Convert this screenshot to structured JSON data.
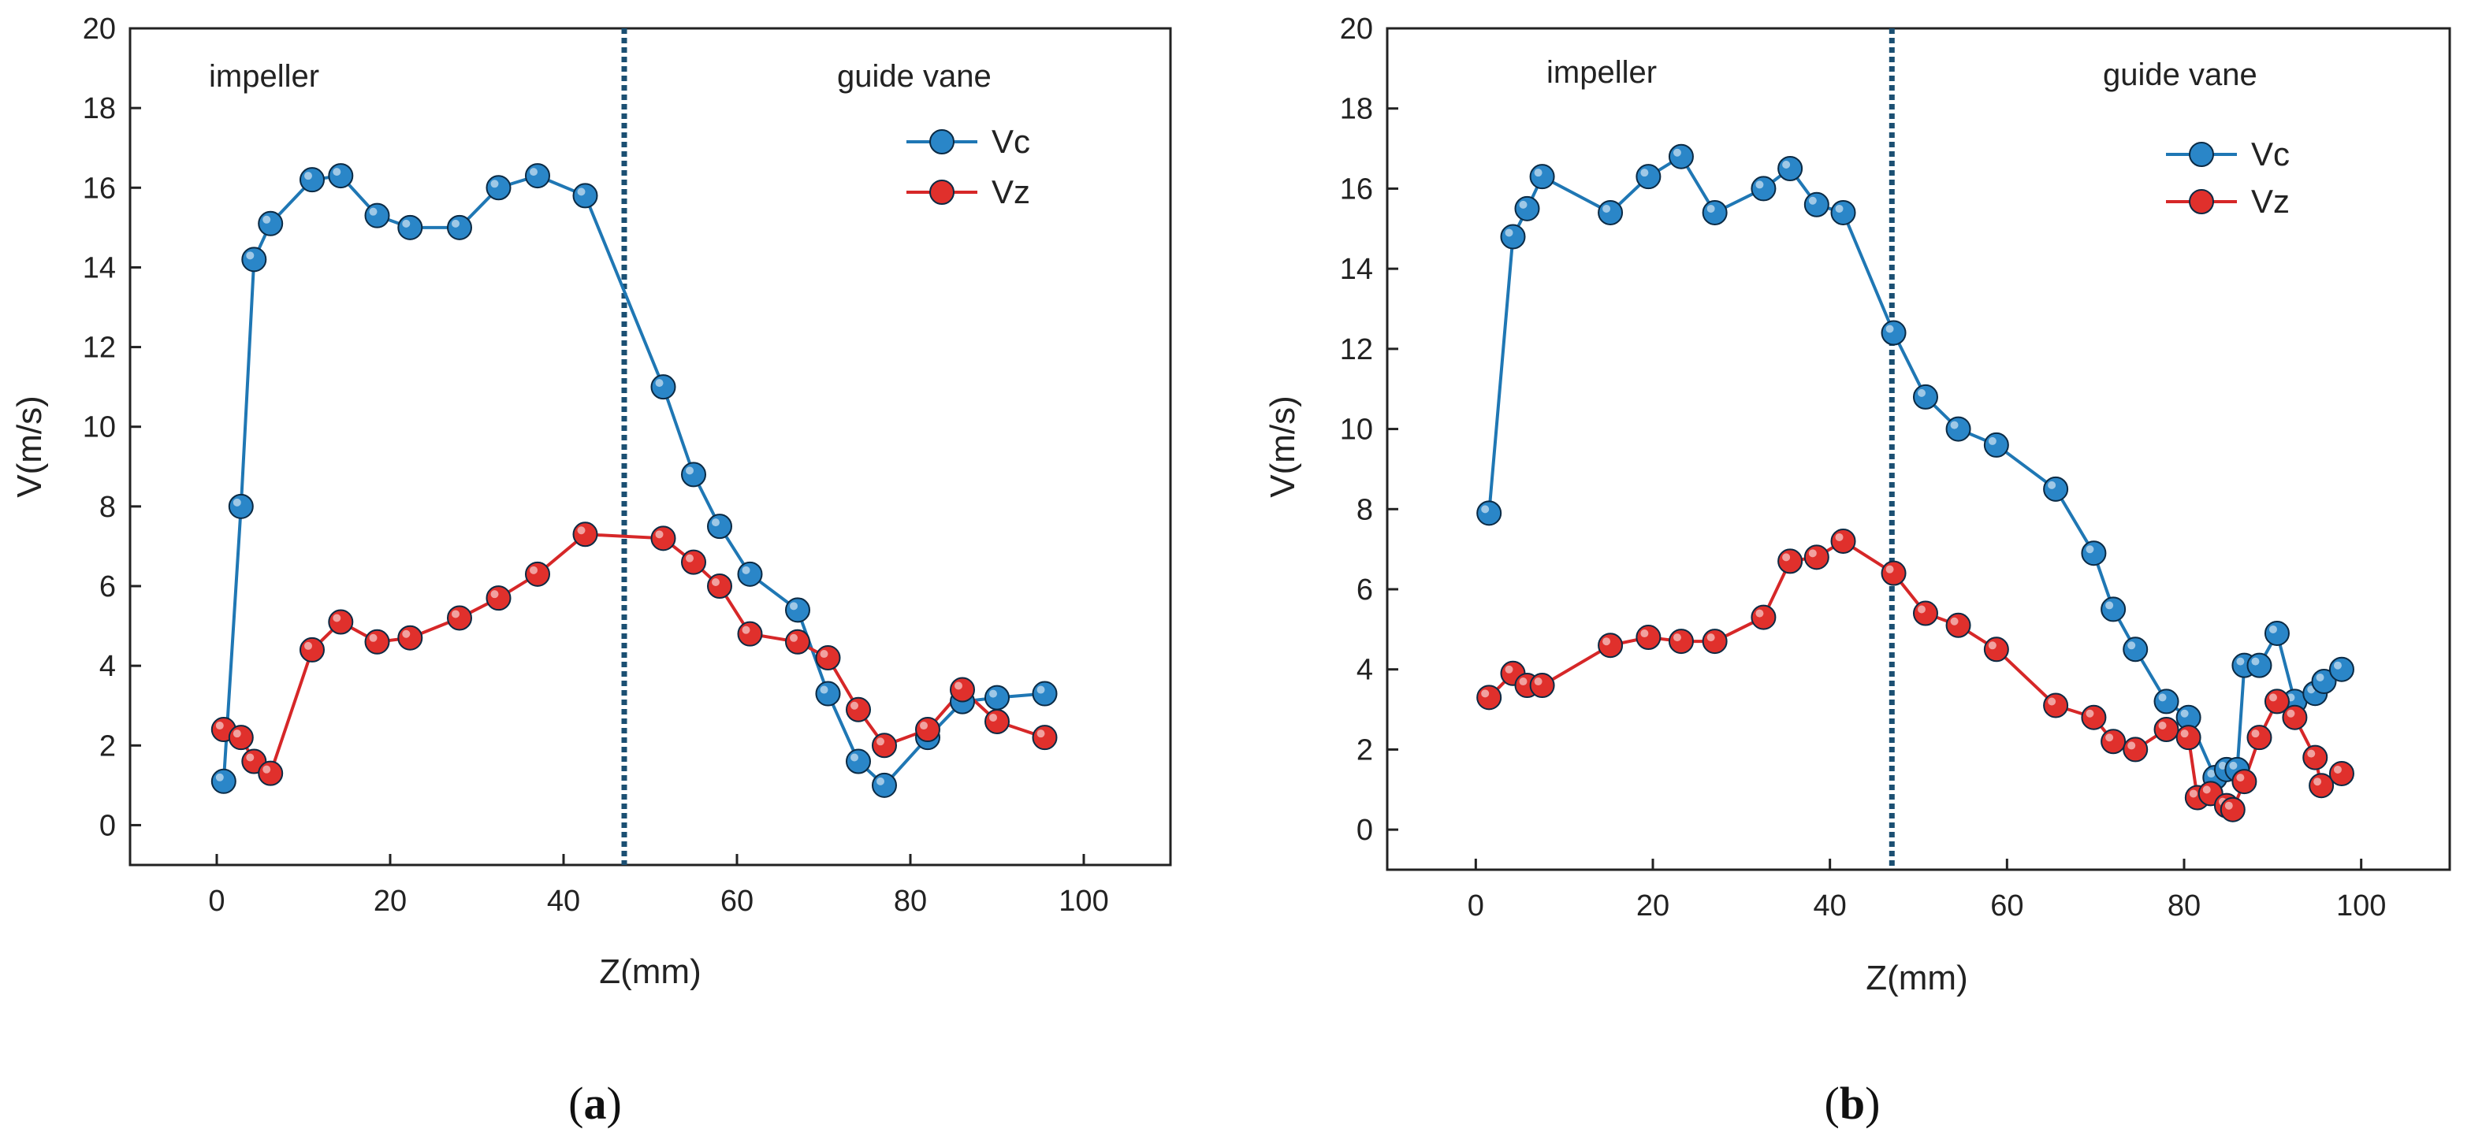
{
  "colors": {
    "vc": "#1f77b4",
    "vc_fill": "#2a86c8",
    "vz": "#d62728",
    "vz_fill": "#e0302c",
    "divider": "#1b4f72",
    "axis": "#222222"
  },
  "chart_data": [
    {
      "type": "line",
      "panel": "a",
      "panel_label": "a",
      "xlabel": "Z(mm)",
      "ylabel": "V(m/s)",
      "xlim": [
        -10,
        110
      ],
      "ylim": [
        -1,
        20
      ],
      "xticks": [
        "0",
        "20",
        "40",
        "60",
        "80",
        "100"
      ],
      "yticks": [
        "0",
        "2",
        "4",
        "6",
        "8",
        "10",
        "12",
        "14",
        "16",
        "18",
        "20"
      ],
      "divider_x": 47,
      "annotations": [
        "impeller",
        "guide vane"
      ],
      "series": [
        {
          "name": "Vc",
          "x": [
            0.8,
            2.8,
            4.3,
            6.2,
            11,
            14.3,
            18.5,
            22.3,
            28,
            32.5,
            37,
            42.5,
            51.5,
            55,
            58,
            61.5,
            67,
            70.5,
            74,
            77,
            82,
            86,
            90,
            95.5
          ],
          "y": [
            1.1,
            8.0,
            14.2,
            15.1,
            16.2,
            16.3,
            15.3,
            15.0,
            15.0,
            16.0,
            16.3,
            15.8,
            11.0,
            8.8,
            7.5,
            6.3,
            5.4,
            3.3,
            1.6,
            1.0,
            2.2,
            3.1,
            3.2,
            3.3
          ]
        },
        {
          "name": "Vz",
          "x": [
            0.8,
            2.8,
            4.3,
            6.2,
            11,
            14.3,
            18.5,
            22.3,
            28,
            32.5,
            37,
            42.5,
            51.5,
            55,
            58,
            61.5,
            67,
            70.5,
            74,
            77,
            82,
            86,
            90,
            95.5
          ],
          "y": [
            2.4,
            2.2,
            1.6,
            1.3,
            4.4,
            5.1,
            4.6,
            4.7,
            5.2,
            5.7,
            6.3,
            7.3,
            7.2,
            6.6,
            6.0,
            4.8,
            4.6,
            4.2,
            2.9,
            2.0,
            2.4,
            3.4,
            2.6,
            2.2
          ]
        }
      ]
    },
    {
      "type": "line",
      "panel": "b",
      "panel_label": "b",
      "xlabel": "Z(mm)",
      "ylabel": "V(m/s)",
      "xlim": [
        -10,
        110
      ],
      "ylim": [
        -1,
        20
      ],
      "xticks": [
        "0",
        "20",
        "40",
        "60",
        "80",
        "100"
      ],
      "yticks": [
        "0",
        "2",
        "4",
        "6",
        "8",
        "10",
        "12",
        "14",
        "16",
        "18",
        "20"
      ],
      "divider_x": 47,
      "annotations": [
        "impeller",
        "guide vane"
      ],
      "series": [
        {
          "name": "Vc",
          "x": [
            1.5,
            4.2,
            5.8,
            7.5,
            15.2,
            19.5,
            23.2,
            27,
            32.5,
            35.5,
            38.5,
            41.5,
            47.2,
            50.8,
            54.5,
            58.8,
            65.5,
            69.8,
            72,
            74.5,
            78,
            80.5,
            83.5,
            84.8,
            86,
            86.8,
            88.5,
            90.5,
            92.5,
            94.8,
            95.8,
            97.8
          ],
          "y": [
            7.9,
            14.8,
            15.5,
            16.3,
            15.4,
            16.3,
            16.8,
            15.4,
            16.0,
            16.5,
            15.6,
            15.4,
            12.4,
            10.8,
            10.0,
            9.6,
            8.5,
            6.9,
            5.5,
            4.5,
            3.2,
            2.8,
            1.3,
            1.5,
            1.5,
            4.1,
            4.1,
            4.9,
            3.2,
            3.4,
            3.7,
            4.0
          ]
        },
        {
          "name": "Vz",
          "x": [
            1.5,
            4.2,
            5.8,
            7.5,
            15.2,
            19.5,
            23.2,
            27,
            32.5,
            35.5,
            38.5,
            41.5,
            47.2,
            50.8,
            54.5,
            58.8,
            65.5,
            69.8,
            72,
            74.5,
            78,
            80.5,
            81.5,
            83,
            84.8,
            85.5,
            86.8,
            88.5,
            90.5,
            92.5,
            94.8,
            95.5,
            97.8
          ],
          "y": [
            3.3,
            3.9,
            3.6,
            3.6,
            4.6,
            4.8,
            4.7,
            4.7,
            5.3,
            6.7,
            6.8,
            7.2,
            6.4,
            5.4,
            5.1,
            4.5,
            3.1,
            2.8,
            2.2,
            2.0,
            2.5,
            2.3,
            0.8,
            0.9,
            0.6,
            0.5,
            1.2,
            2.3,
            3.2,
            2.8,
            1.8,
            1.1,
            1.4
          ]
        }
      ]
    }
  ]
}
